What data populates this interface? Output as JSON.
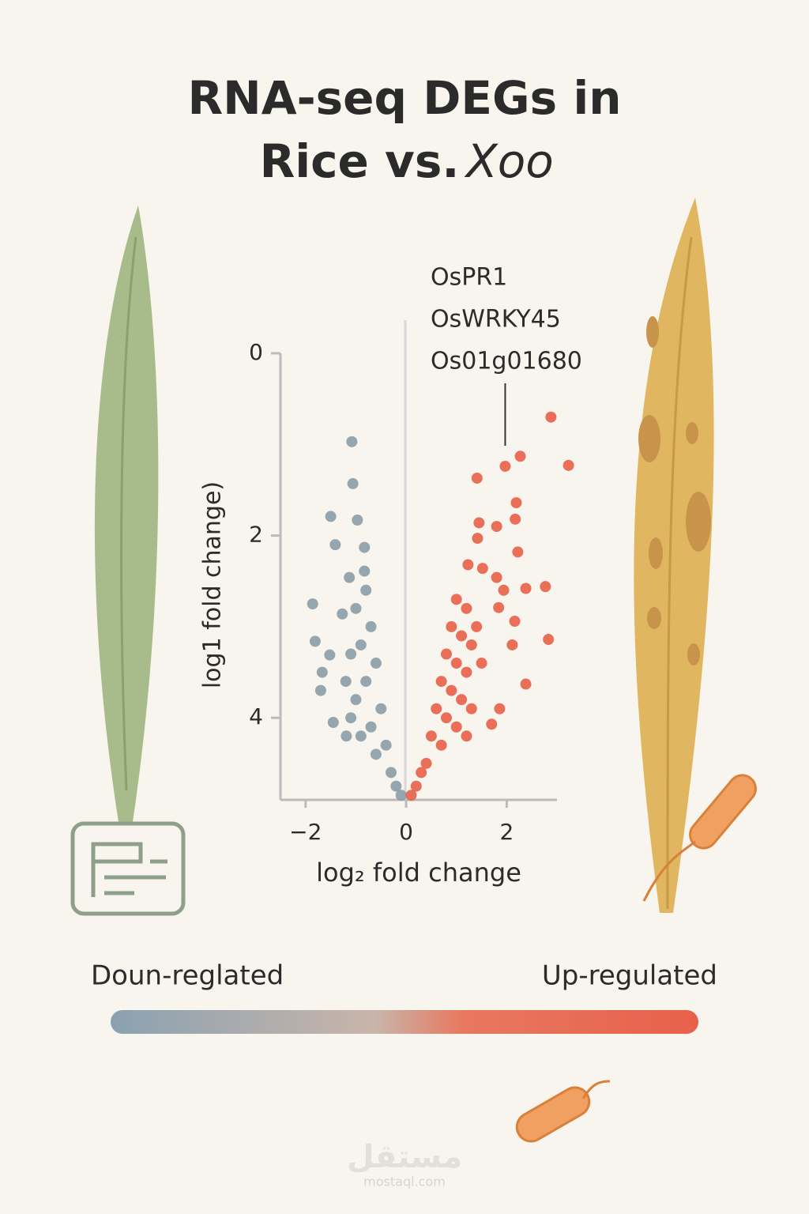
{
  "chart_data": {
    "type": "scatter",
    "title": [
      "RNA-seq DEGs in",
      "Rice vs."
    ],
    "title_species": "Xoo",
    "xlabel": "log₂ fold change",
    "ylabel": "log1 fold change)",
    "xlim": [
      -2.5,
      3.0
    ],
    "ylim": [
      0,
      4.9
    ],
    "y_inverted": true,
    "xticks": [
      {
        "value": -2,
        "label": "−2"
      },
      0,
      2
    ],
    "yticks": [
      0,
      2,
      4
    ],
    "annotation": [
      "OsPR1",
      "OsWRKY45",
      "Os01g01680"
    ],
    "series": [
      {
        "name": "Doun-reglated",
        "color": "#8d9ea8",
        "x": [
          -1.08,
          -1.06,
          -1.5,
          -0.97,
          -0.83,
          -1.41,
          -1.86,
          -1.81,
          -1.7,
          -1.45,
          -1.52,
          -1.67,
          -1.13,
          -0.83,
          -1.27,
          -1.19,
          -0.8,
          -1.0,
          -0.7,
          -0.9,
          -1.1,
          -0.6,
          -0.8,
          -1.0,
          -0.5,
          -0.7,
          -0.9,
          -0.4,
          -0.6,
          -0.3,
          -0.2,
          -0.1,
          -1.2,
          -1.1
        ],
        "values": [
          0.97,
          1.43,
          1.79,
          1.83,
          2.13,
          2.1,
          2.75,
          3.16,
          3.7,
          4.05,
          3.31,
          3.5,
          2.46,
          2.39,
          2.86,
          4.2,
          2.6,
          2.8,
          3.0,
          3.2,
          3.3,
          3.4,
          3.6,
          3.8,
          3.9,
          4.1,
          4.2,
          4.3,
          4.4,
          4.6,
          4.75,
          4.85,
          3.6,
          4.0
        ]
      },
      {
        "name": "Up-regulated",
        "color": "#e8634c",
        "x": [
          2.88,
          3.23,
          2.27,
          1.97,
          1.41,
          2.19,
          2.17,
          1.8,
          1.45,
          1.42,
          2.22,
          2.77,
          2.38,
          1.94,
          1.52,
          1.23,
          1.8,
          1.84,
          2.83,
          2.16,
          2.38,
          1.86,
          1.7,
          2.11,
          1.0,
          1.2,
          0.9,
          1.1,
          1.3,
          0.8,
          1.0,
          1.2,
          0.7,
          0.9,
          1.1,
          0.6,
          0.8,
          1.0,
          0.5,
          0.7,
          0.4,
          0.3,
          0.2,
          0.1,
          1.4,
          1.5,
          1.3,
          1.2
        ],
        "values": [
          0.7,
          1.23,
          1.13,
          1.24,
          1.37,
          1.64,
          1.82,
          1.9,
          1.86,
          2.03,
          2.18,
          2.56,
          2.58,
          2.6,
          2.36,
          2.32,
          2.46,
          2.79,
          3.14,
          2.94,
          3.63,
          3.9,
          4.07,
          3.2,
          2.7,
          2.8,
          3.0,
          3.1,
          3.2,
          3.3,
          3.4,
          3.5,
          3.6,
          3.7,
          3.8,
          3.9,
          4.0,
          4.1,
          4.2,
          4.3,
          4.5,
          4.6,
          4.75,
          4.85,
          3.0,
          3.4,
          3.9,
          4.2
        ]
      }
    ]
  },
  "watermark": {
    "arabic": "مستقل",
    "site": "mostaql.com"
  }
}
